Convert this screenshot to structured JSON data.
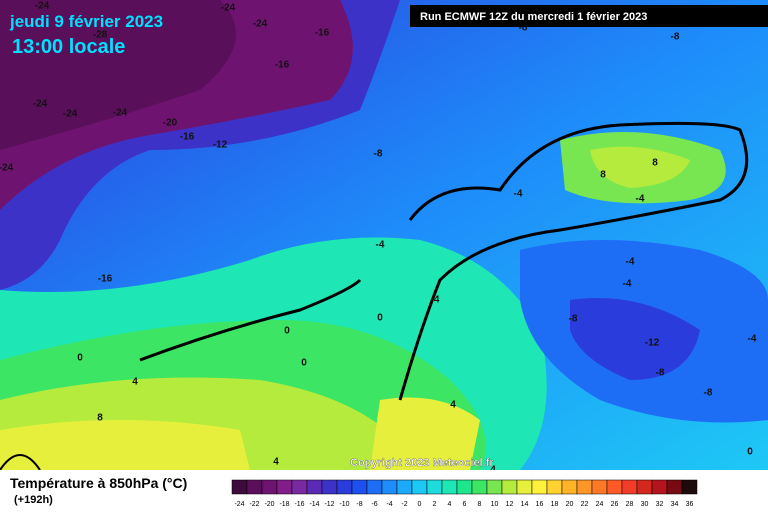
{
  "header": {
    "date": "jeudi 9 février 2023",
    "time": "13:00 locale",
    "run": "Run ECMWF 12Z du mercredi 1 février 2023"
  },
  "copyright": "Copyright 2023 Meteociel.fr",
  "legend": {
    "title": "Température à 850hPa (°C)",
    "lead": "(+192h)",
    "ticks": [
      -24,
      -22,
      -20,
      -18,
      -16,
      -14,
      -12,
      -10,
      -8,
      -6,
      -4,
      -2,
      0,
      2,
      4,
      6,
      8,
      10,
      12,
      14,
      16,
      18,
      20,
      22,
      24,
      26,
      28,
      30,
      32,
      34,
      36
    ],
    "colors": [
      "#3c0a3c",
      "#5a0f5a",
      "#6e1470",
      "#821e8a",
      "#7a2aa0",
      "#5a2ab4",
      "#3c32c8",
      "#2a3cdc",
      "#1e50f0",
      "#1e6ef5",
      "#1e8cfa",
      "#1eaafa",
      "#1ec8f5",
      "#1edcdc",
      "#1ee6b4",
      "#1ee68c",
      "#3ce664",
      "#78e650",
      "#b4eb3c",
      "#e6f03c",
      "#fff03c",
      "#ffd232",
      "#ffb428",
      "#ff9628",
      "#ff7828",
      "#ff5a28",
      "#f03c28",
      "#d2281e",
      "#b4141e",
      "#780a14",
      "#1e0a0a"
    ]
  },
  "map_labels": [
    -24,
    -24,
    -24,
    -28,
    -16,
    -16,
    -24,
    -24,
    -24,
    -20,
    -16,
    -12,
    -8,
    -24,
    -16,
    -8,
    -8,
    8,
    8,
    -4,
    -4,
    -4,
    -4,
    -4,
    -4,
    -8,
    -12,
    -4,
    -8,
    -8,
    0,
    0,
    0,
    0,
    4,
    8,
    4,
    4,
    0,
    4
  ]
}
